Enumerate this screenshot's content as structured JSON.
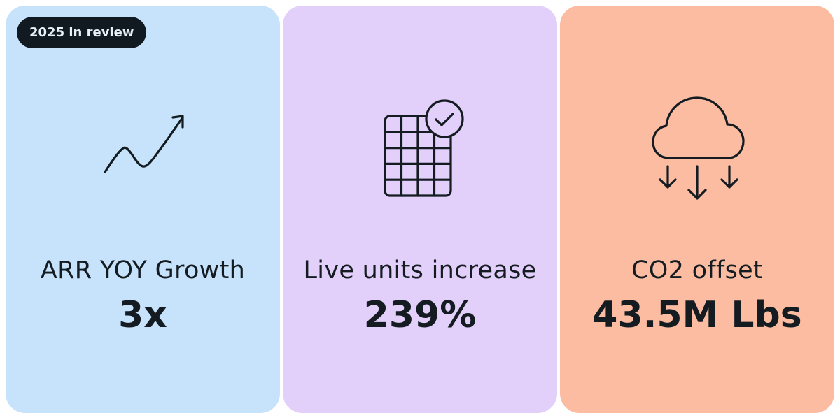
{
  "badge": {
    "label": "2025 in review"
  },
  "cards": [
    {
      "icon": "trend-up-arrow-icon",
      "label": "ARR YOY Growth",
      "value": "3x",
      "background": "#c6e3fb"
    },
    {
      "icon": "grid-checkmark-icon",
      "label": "Live units increase",
      "value": "239%",
      "background": "#e2cffa"
    },
    {
      "icon": "cloud-down-arrows-icon",
      "label": "CO2 offset",
      "value": "43.5M Lbs",
      "background": "#fbbca2"
    }
  ],
  "colors": {
    "ink": "#141c22",
    "badge_bg": "#101a20",
    "badge_text": "#e8f0f6"
  }
}
